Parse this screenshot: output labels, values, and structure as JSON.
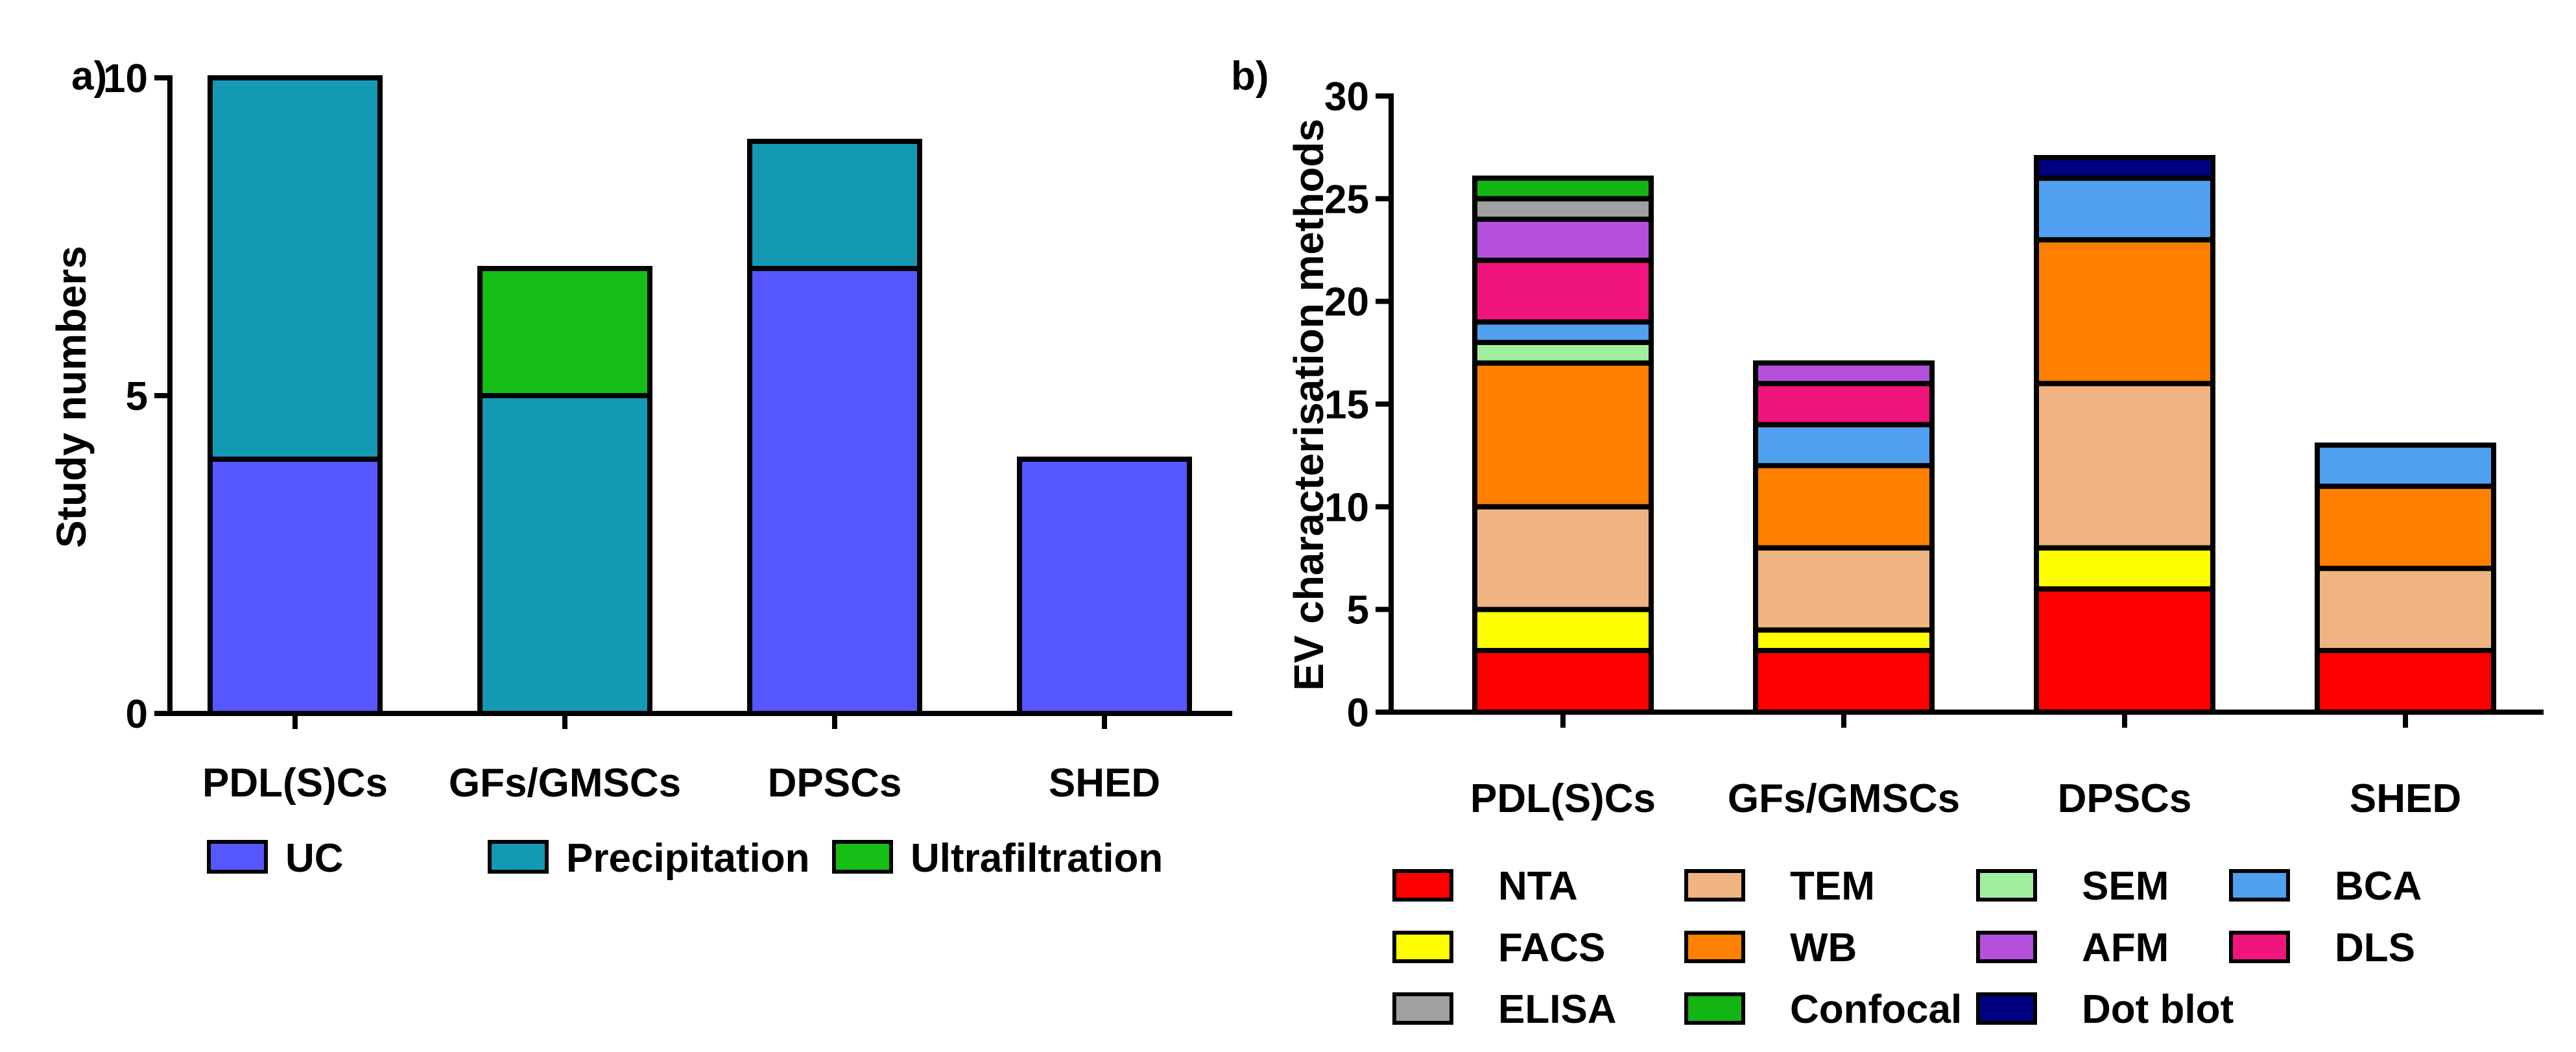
{
  "chart_data": [
    {
      "panel_label": "a)",
      "type": "bar",
      "stacked": true,
      "ylabel": "Study numbers",
      "xlabel": "",
      "ylim": [
        0,
        10
      ],
      "yticks": [
        0,
        5,
        10
      ],
      "categories": [
        "PDL(S)Cs",
        "GFs/GMSCs",
        "DPSCs",
        "SHED"
      ],
      "series": [
        {
          "name": "UC",
          "color": "#5757FF",
          "values": [
            4,
            0,
            7,
            4
          ]
        },
        {
          "name": "Precipitation",
          "color": "#1499B4",
          "values": [
            6,
            5,
            2,
            0
          ]
        },
        {
          "name": "Ultrafiltration",
          "color": "#14BE14",
          "values": [
            0,
            2,
            0,
            0
          ]
        }
      ],
      "legend_position": "bottom"
    },
    {
      "panel_label": "b)",
      "type": "bar",
      "stacked": true,
      "ylabel": "EV characterisation methods",
      "xlabel": "",
      "ylim": [
        0,
        30
      ],
      "yticks": [
        0,
        5,
        10,
        15,
        20,
        25,
        30
      ],
      "categories": [
        "PDL(S)Cs",
        "GFs/GMSCs",
        "DPSCs",
        "SHED"
      ],
      "series": [
        {
          "name": "NTA",
          "color": "#FF0000",
          "values": [
            3,
            3,
            6,
            3
          ]
        },
        {
          "name": "FACS",
          "color": "#FFFF00",
          "values": [
            2,
            1,
            2,
            0
          ]
        },
        {
          "name": "TEM",
          "color": "#F0B482",
          "values": [
            5,
            4,
            8,
            4
          ]
        },
        {
          "name": "WB",
          "color": "#FF7F00",
          "values": [
            7,
            4,
            7,
            4
          ]
        },
        {
          "name": "SEM",
          "color": "#A0F0A0",
          "values": [
            1,
            0,
            0,
            0
          ]
        },
        {
          "name": "BCA",
          "color": "#50A0F0",
          "values": [
            1,
            2,
            3,
            2
          ]
        },
        {
          "name": "DLS",
          "color": "#F0147D",
          "values": [
            3,
            2,
            0,
            0
          ]
        },
        {
          "name": "AFM",
          "color": "#B450DC",
          "values": [
            2,
            1,
            0,
            0
          ]
        },
        {
          "name": "ELISA",
          "color": "#A0A0A0",
          "values": [
            1,
            0,
            0,
            0
          ]
        },
        {
          "name": "Confocal",
          "color": "#14B414",
          "values": [
            1,
            0,
            0,
            0
          ]
        },
        {
          "name": "Dot blot",
          "color": "#000082",
          "values": [
            0,
            0,
            1,
            0
          ]
        }
      ],
      "legend_order": [
        "NTA",
        "TEM",
        "SEM",
        "BCA",
        "FACS",
        "WB",
        "AFM",
        "DLS",
        "ELISA",
        "Confocal",
        "Dot blot"
      ],
      "legend_position": "bottom"
    }
  ]
}
